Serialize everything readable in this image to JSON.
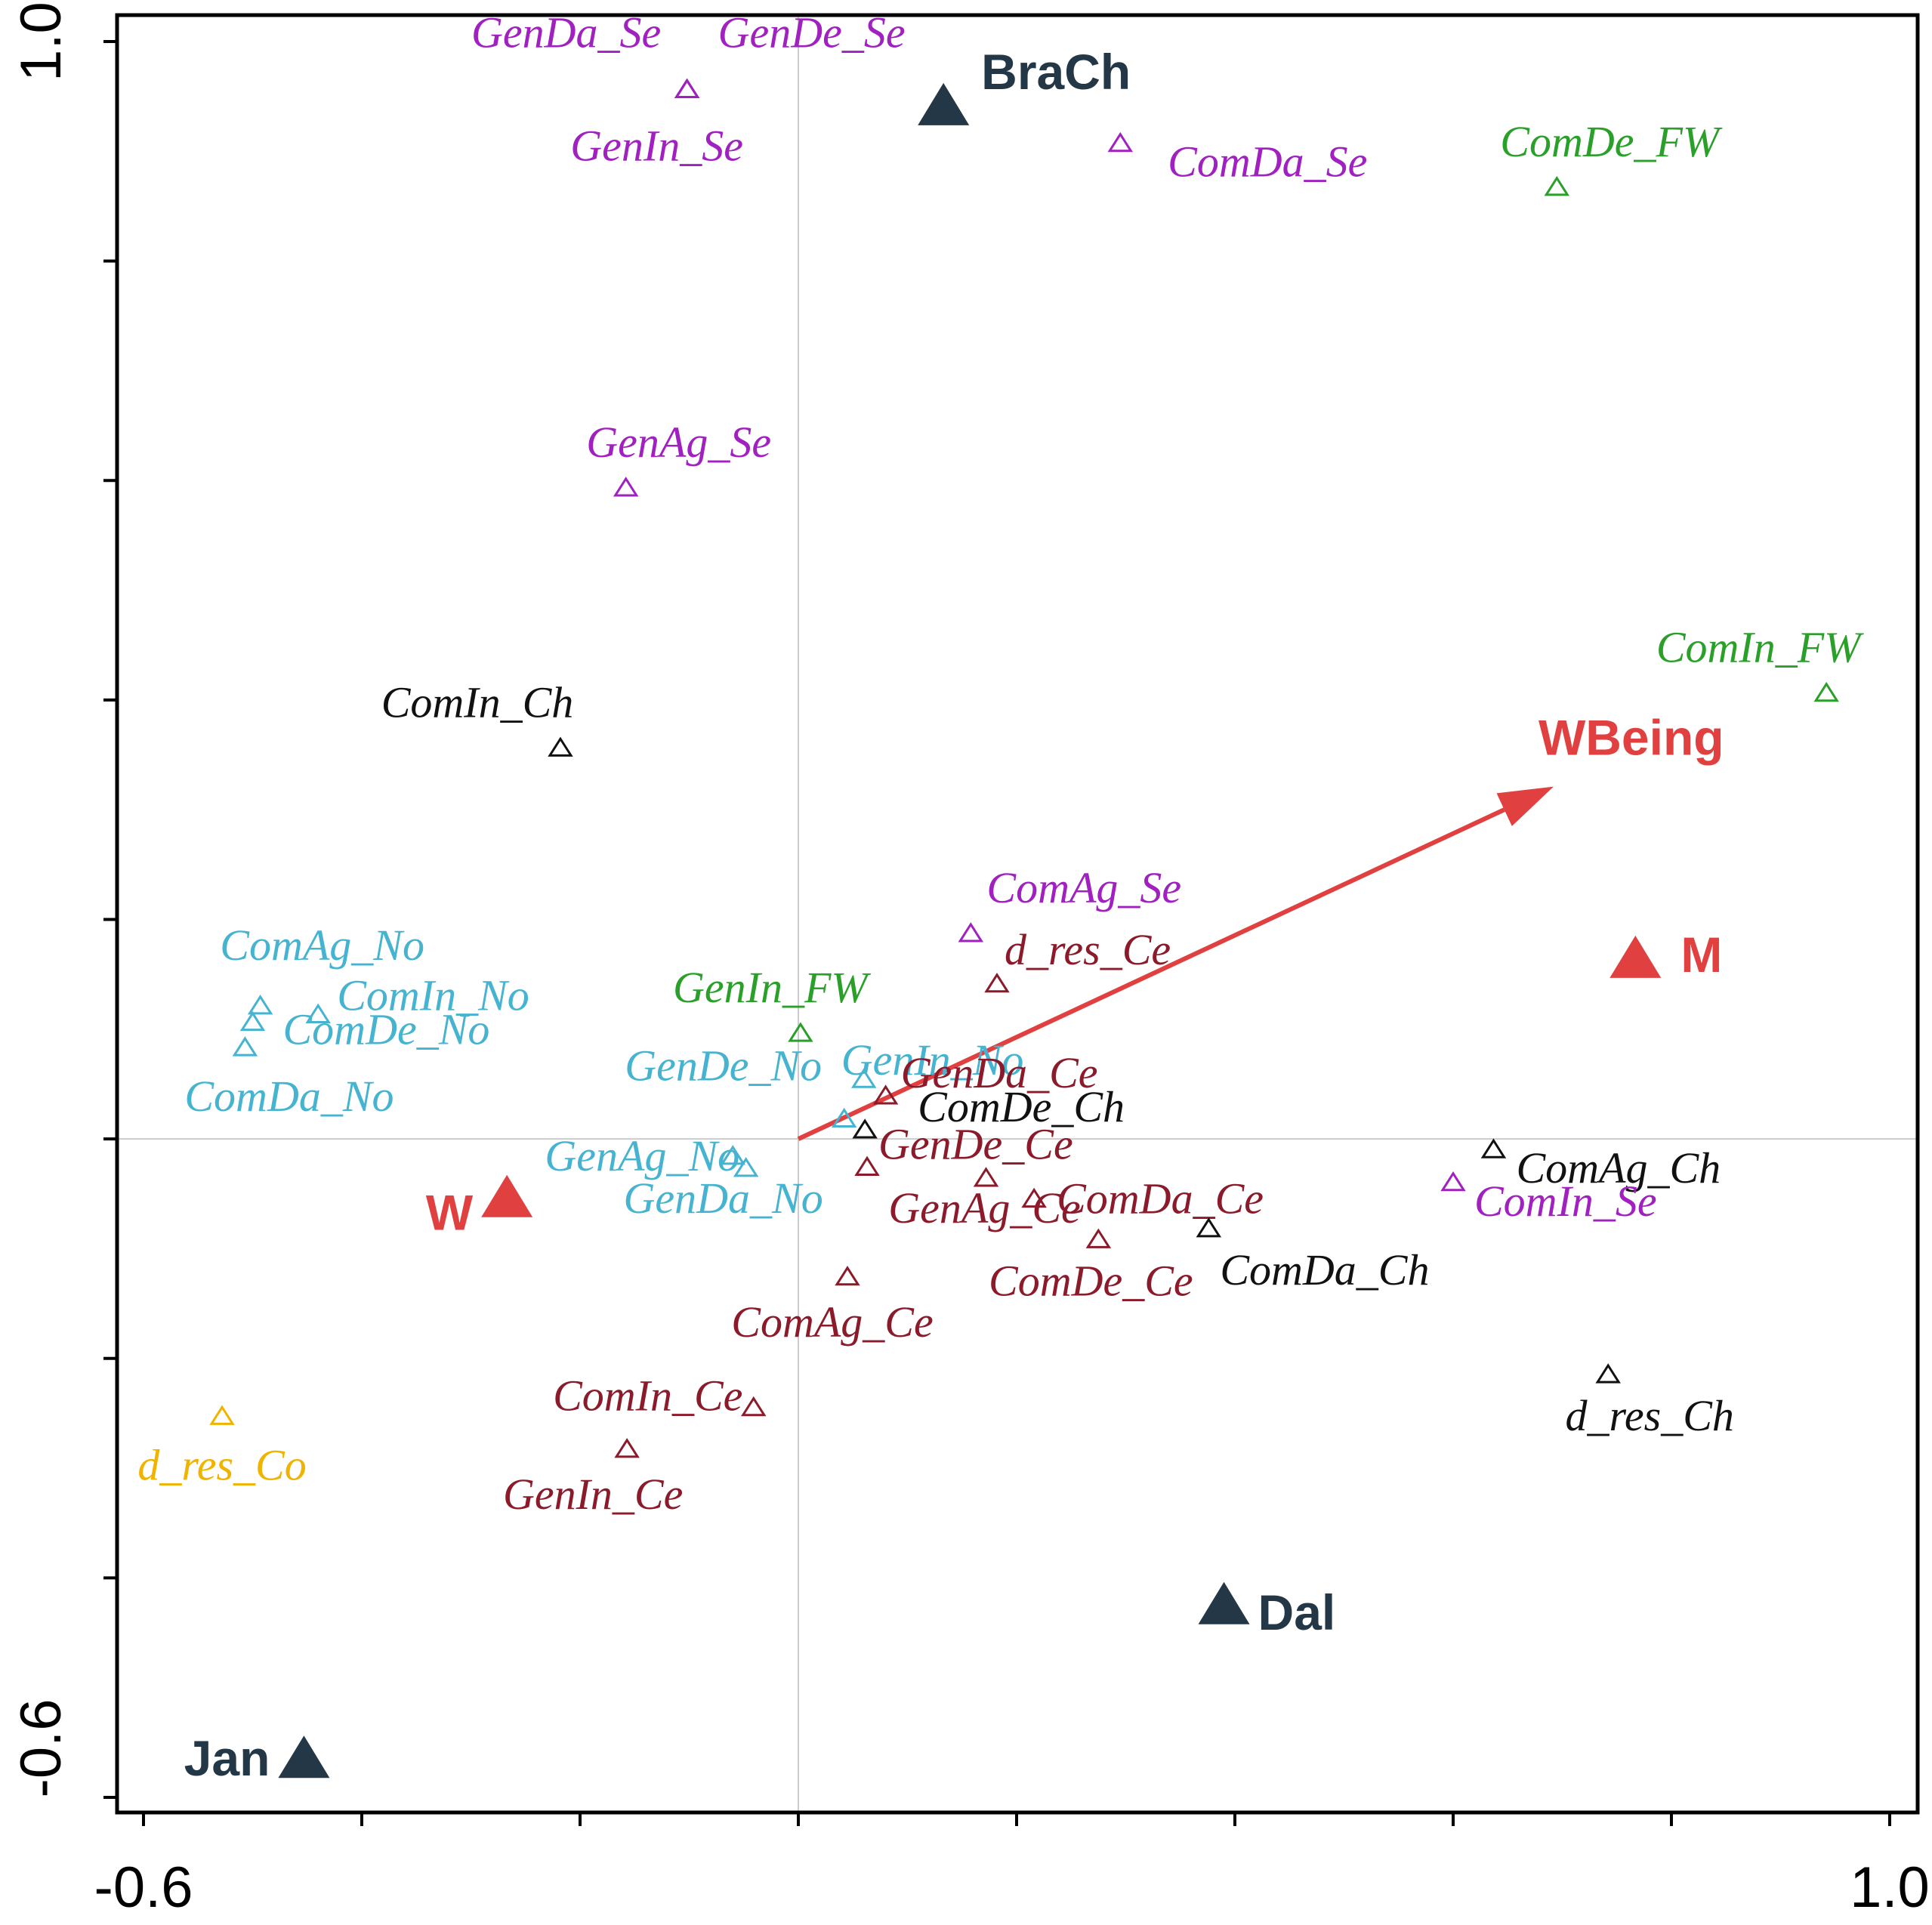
{
  "chart_data": {
    "type": "scatter",
    "subtype": "ordination-triplot",
    "title": "",
    "xlabel": "",
    "ylabel": "",
    "xlim": [
      -0.6,
      1.0
    ],
    "ylim": [
      -0.6,
      1.0
    ],
    "tick_labels": {
      "x_min": "-0.6",
      "x_max": "1.0",
      "y_min": "-0.6",
      "y_max": "1.0"
    },
    "x_ticks": [
      -0.6,
      -0.4,
      -0.2,
      0.0,
      0.2,
      0.4,
      0.6,
      0.8,
      1.0
    ],
    "y_ticks": [
      -0.6,
      -0.4,
      -0.2,
      0.0,
      0.2,
      0.4,
      0.6,
      0.8,
      1.0
    ],
    "reference_lines": {
      "x": 0,
      "y": 0
    },
    "colors": {
      "Se": "#a020c0",
      "FW": "#2aa02a",
      "No": "#46b4d0",
      "Ce": "#8b1a2a",
      "Ch": "#111111",
      "Co": "#f0b400",
      "site": "#233746",
      "gender": "#e04040",
      "axis": "#000000",
      "refline": "#cccccc"
    },
    "species": [
      {
        "name": "GenDa_Se",
        "group": "Se",
        "x": -0.102,
        "y": 0.957,
        "label": "GenDa_Se"
      },
      {
        "name": "GenDe_Se",
        "group": "Se",
        "x": -0.102,
        "y": 0.957,
        "label": "GenDe_Se"
      },
      {
        "name": "GenIn_Se",
        "group": "Se",
        "x": -0.102,
        "y": 0.957,
        "label": "GenIn_Se"
      },
      {
        "name": "ComDa_Se",
        "group": "Se",
        "x": 0.295,
        "y": 0.908,
        "label": "ComDa_Se"
      },
      {
        "name": "ComDe_FW",
        "group": "FW",
        "x": 0.695,
        "y": 0.868,
        "label": "ComDe_FW"
      },
      {
        "name": "GenAg_Se",
        "group": "Se",
        "x": -0.158,
        "y": 0.594,
        "label": "GenAg_Se"
      },
      {
        "name": "ComIn_FW",
        "group": "FW",
        "x": 0.942,
        "y": 0.407,
        "label": "ComIn_FW"
      },
      {
        "name": "ComIn_Ch",
        "group": "Ch",
        "x": -0.218,
        "y": 0.357,
        "label": "ComIn_Ch"
      },
      {
        "name": "ComAg_Se",
        "group": "Se",
        "x": 0.158,
        "y": 0.188,
        "label": "ComAg_Se"
      },
      {
        "name": "d_res_Ce",
        "group": "Ce",
        "x": 0.182,
        "y": 0.142,
        "label": "d_res_Ce"
      },
      {
        "name": "GenIn_FW",
        "group": "FW",
        "x": 0.002,
        "y": 0.097,
        "label": "GenIn_FW"
      },
      {
        "name": "ComAg_No",
        "group": "No",
        "x": -0.493,
        "y": 0.122,
        "label": "ComAg_No"
      },
      {
        "name": "ComIn_No",
        "group": "No",
        "x": -0.44,
        "y": 0.114,
        "label": "ComIn_No"
      },
      {
        "name": "ComDe_No",
        "group": "No",
        "x": -0.5,
        "y": 0.107,
        "label": "ComDe_No"
      },
      {
        "name": "ComDa_No",
        "group": "No",
        "x": -0.507,
        "y": 0.084,
        "label": "ComDa_No"
      },
      {
        "name": "GenIn_No",
        "group": "No",
        "x": 0.06,
        "y": 0.055,
        "label": "GenIn_No"
      },
      {
        "name": "GenDe_No",
        "group": "No",
        "x": 0.042,
        "y": 0.019,
        "label": "GenDe_No"
      },
      {
        "name": "GenDa_Ce",
        "group": "Ce",
        "x": 0.08,
        "y": 0.04,
        "label": "GenDa_Ce"
      },
      {
        "name": "ComDe_Ch",
        "group": "Ch",
        "x": 0.061,
        "y": 0.009,
        "label": "ComDe_Ch"
      },
      {
        "name": "GenDe_Ce",
        "group": "Ce",
        "x": 0.063,
        "y": -0.025,
        "label": "GenDe_Ce"
      },
      {
        "name": "GenAg_No",
        "group": "No",
        "x": -0.06,
        "y": -0.015,
        "label": "GenAg_No"
      },
      {
        "name": "GenDa_No",
        "group": "No",
        "x": -0.048,
        "y": -0.026,
        "label": "GenDa_No"
      },
      {
        "name": "GenAg_Ce",
        "group": "Ce",
        "x": 0.172,
        "y": -0.035,
        "label": "GenAg_Ce"
      },
      {
        "name": "ComDa_Ce",
        "group": "Ce",
        "x": 0.216,
        "y": -0.054,
        "label": "ComDa_Ce"
      },
      {
        "name": "ComDe_Ce",
        "group": "Ce",
        "x": 0.275,
        "y": -0.091,
        "label": "ComDe_Ce"
      },
      {
        "name": "ComDa_Ch",
        "group": "Ch",
        "x": 0.376,
        "y": -0.081,
        "label": "ComDa_Ch"
      },
      {
        "name": "ComAg_Ch",
        "group": "Ch",
        "x": 0.637,
        "y": -0.009,
        "label": "ComAg_Ch"
      },
      {
        "name": "ComIn_Se",
        "group": "Se",
        "x": 0.6,
        "y": -0.039,
        "label": "ComIn_Se"
      },
      {
        "name": "ComAg_Ce",
        "group": "Ce",
        "x": 0.045,
        "y": -0.125,
        "label": "ComAg_Ce"
      },
      {
        "name": "ComIn_Ce",
        "group": "Ce",
        "x": -0.041,
        "y": -0.244,
        "label": "ComIn_Ce"
      },
      {
        "name": "GenIn_Ce",
        "group": "Ce",
        "x": -0.157,
        "y": -0.282,
        "label": "GenIn_Ce"
      },
      {
        "name": "d_res_Co",
        "group": "Co",
        "x": -0.528,
        "y": -0.252,
        "label": "d_res_Co"
      },
      {
        "name": "d_res_Ch",
        "group": "Ch",
        "x": 0.742,
        "y": -0.214,
        "label": "d_res_Ch"
      }
    ],
    "sites": [
      {
        "name": "BraCh",
        "x": 0.133,
        "y": 0.943,
        "label": "BraCh"
      },
      {
        "name": "Dal",
        "x": 0.39,
        "y": -0.423,
        "label": "Dal"
      },
      {
        "name": "Jan",
        "x": -0.453,
        "y": -0.563,
        "label": "Jan"
      }
    ],
    "genders": [
      {
        "name": "M",
        "x": 0.767,
        "y": 0.166,
        "label": "M",
        "color": "#e04040"
      },
      {
        "name": "W",
        "x": -0.267,
        "y": -0.052,
        "label": "W",
        "color": "#e04040"
      }
    ],
    "vectors": [
      {
        "name": "WBeing",
        "x0": 0.0,
        "y0": 0.0,
        "x1": 0.692,
        "y1": 0.321,
        "label": "WBeing",
        "color": "#e04040"
      }
    ]
  }
}
